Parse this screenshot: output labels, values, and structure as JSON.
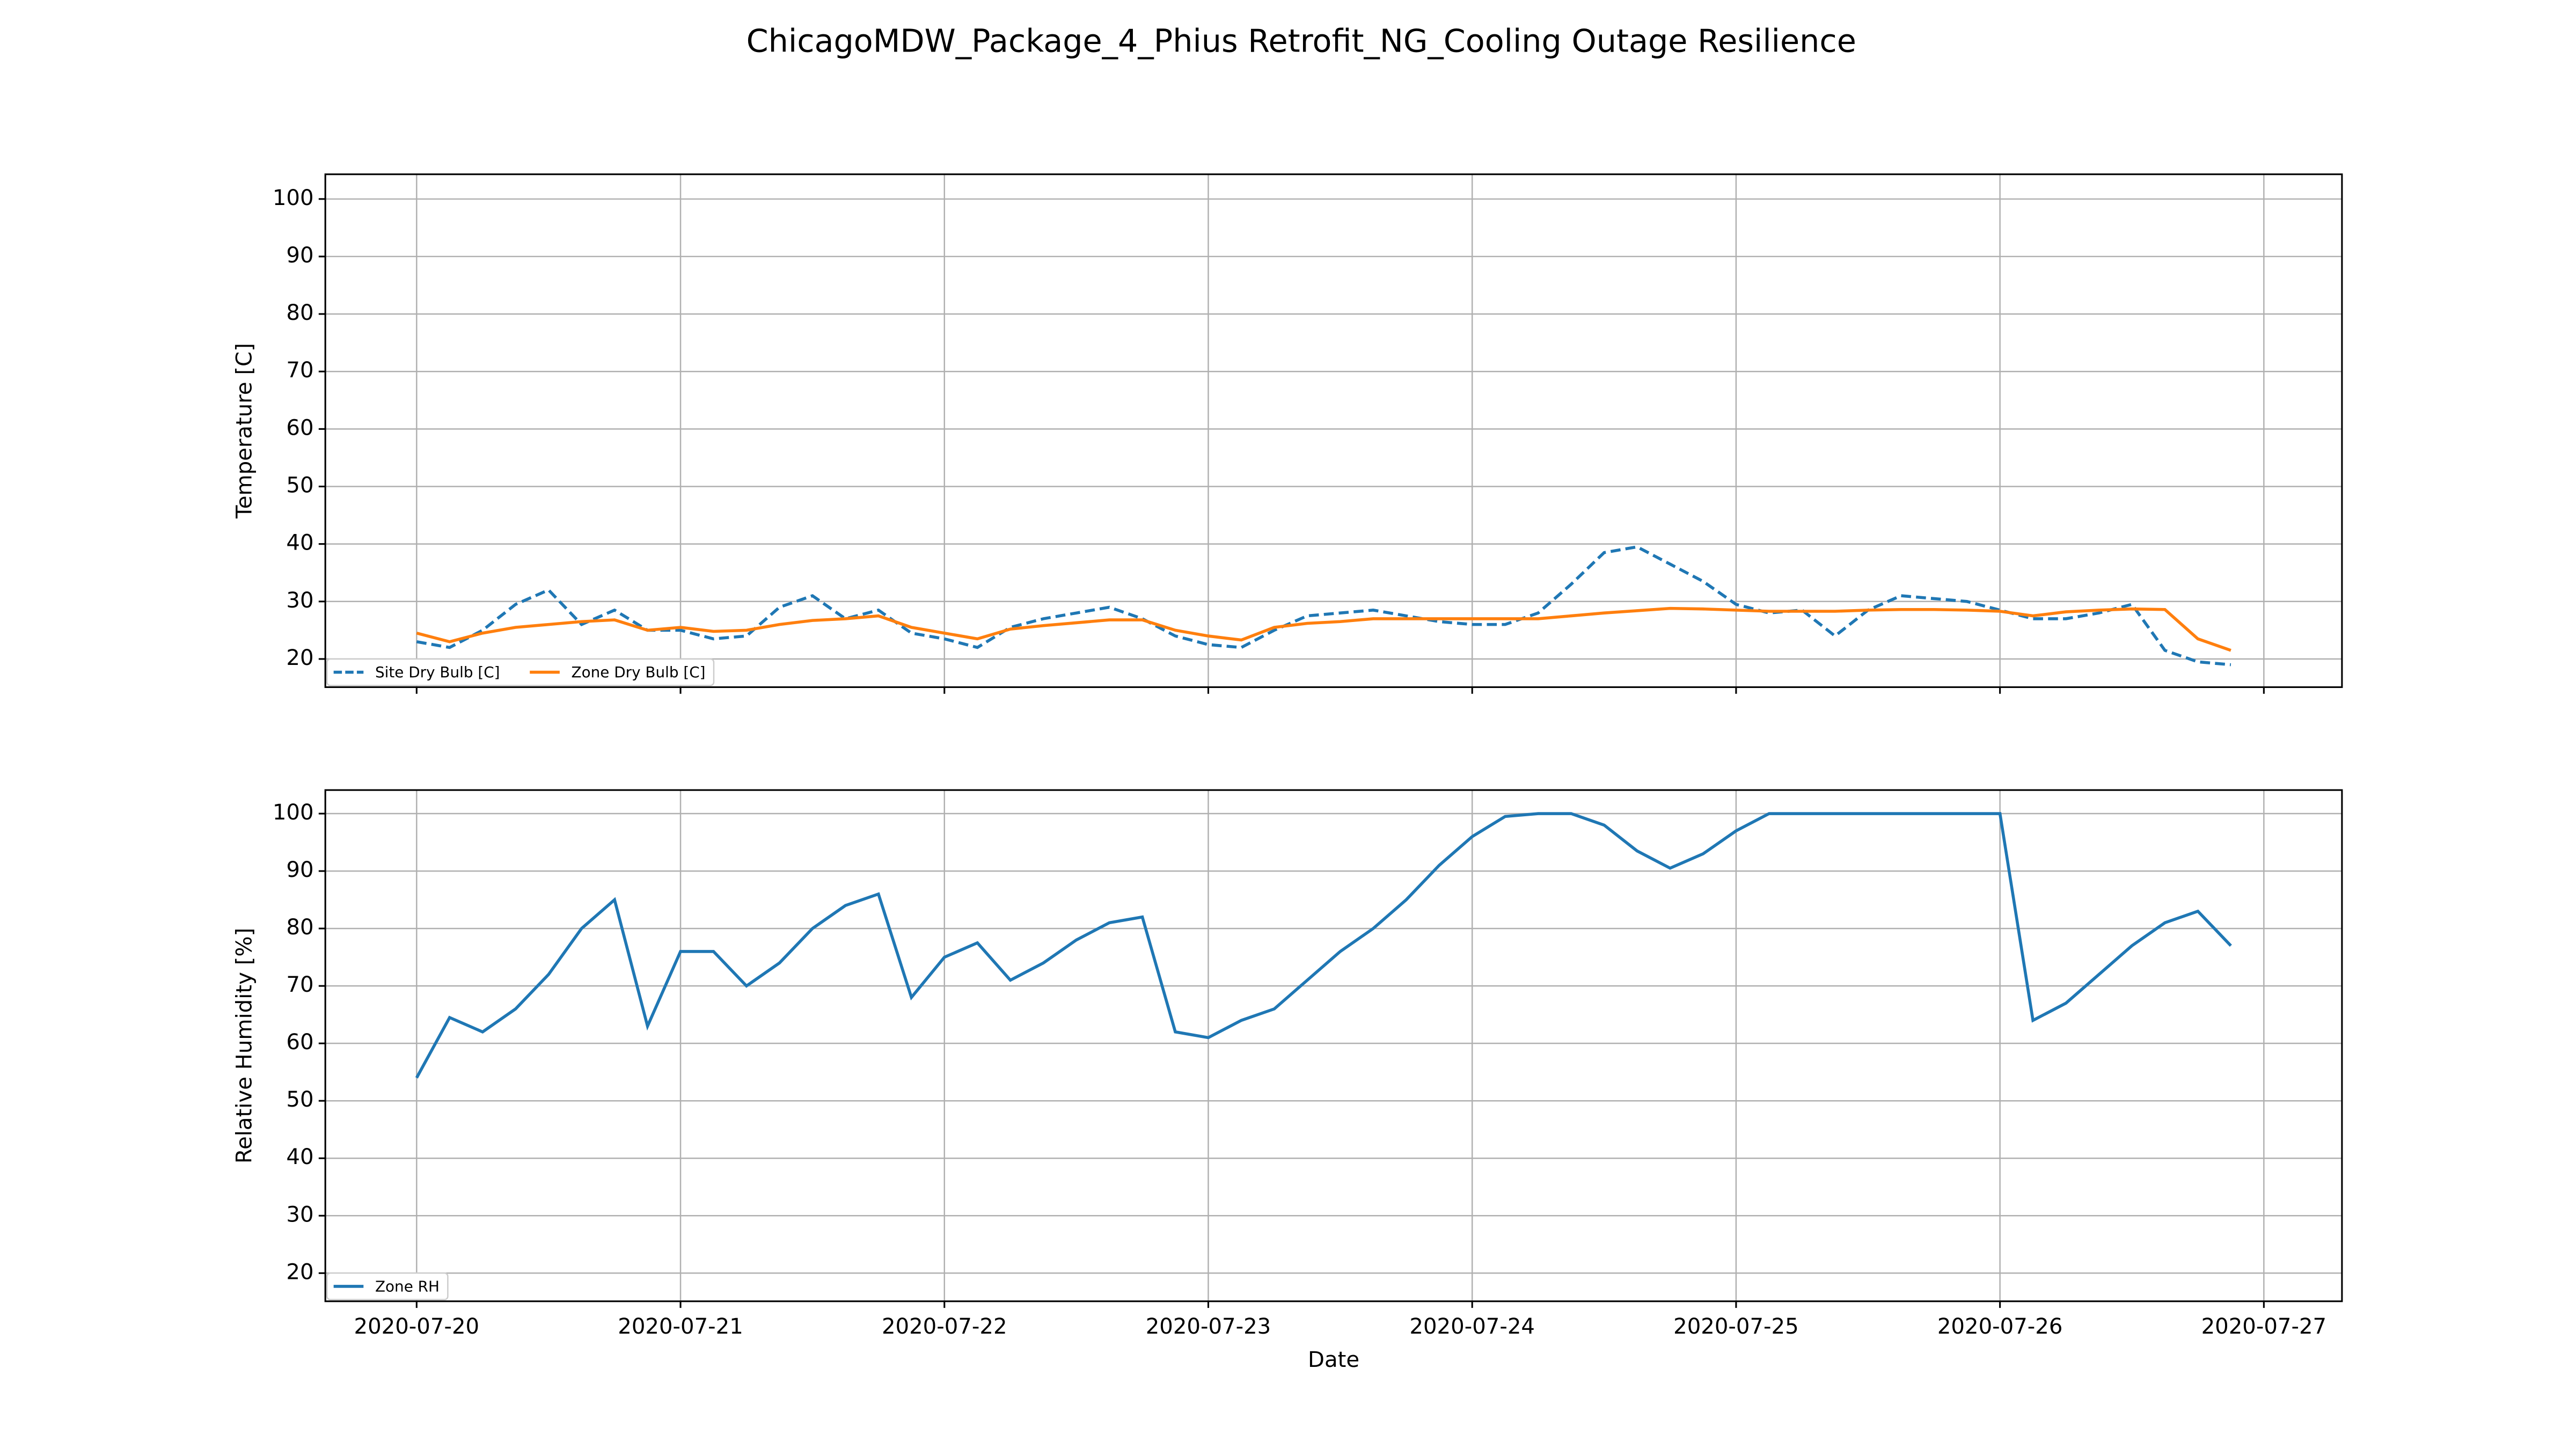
{
  "title": "ChicagoMDW_Package_4_Phius Retrofit_NG_Cooling Outage Resilience",
  "chart_data": [
    {
      "type": "line",
      "ylabel": "Temperature [C]",
      "x": [
        0,
        0.125,
        0.25,
        0.375,
        0.5,
        0.625,
        0.75,
        0.875,
        1,
        1.125,
        1.25,
        1.375,
        1.5,
        1.625,
        1.75,
        1.875,
        2,
        2.125,
        2.25,
        2.375,
        2.5,
        2.625,
        2.75,
        2.875,
        3,
        3.125,
        3.25,
        3.375,
        3.5,
        3.625,
        3.75,
        3.875,
        4,
        4.125,
        4.25,
        4.375,
        4.5,
        4.625,
        4.75,
        4.875,
        5,
        5.125,
        5.25,
        5.375,
        5.5,
        5.625,
        5.75,
        5.875,
        6,
        6.125,
        6.25,
        6.375,
        6.5,
        6.625,
        6.75,
        6.875
      ],
      "xlim": [
        -0.346,
        7.296
      ],
      "xticks": [
        0,
        1,
        2,
        3,
        4,
        5,
        6,
        7
      ],
      "ylim": [
        15.1,
        104.3
      ],
      "yticks": [
        20,
        30,
        40,
        50,
        60,
        70,
        80,
        90,
        100
      ],
      "grid": true,
      "legend": "lower left",
      "series": [
        {
          "name": "Site Dry Bulb [C]",
          "color": "#1f77b4",
          "linestyle": "dashed",
          "values": [
            23,
            22,
            25,
            29.5,
            32,
            26,
            28.5,
            25,
            25,
            23.5,
            24,
            29,
            31,
            27,
            28.5,
            24.5,
            23.5,
            22,
            25.5,
            27,
            28,
            29,
            27,
            24,
            22.5,
            22,
            25,
            27.5,
            28,
            28.5,
            27.5,
            26.5,
            26,
            26,
            28,
            33,
            38.5,
            39.5,
            36.5,
            33.5,
            29.5,
            28,
            28.5,
            24,
            28.5,
            31,
            30.5,
            30,
            28.5,
            27,
            27,
            28,
            29.5,
            21.5,
            19.5,
            19
          ]
        },
        {
          "name": "Zone Dry Bulb [C]",
          "color": "#ff7f0e",
          "linestyle": "solid",
          "values": [
            24.5,
            23,
            24.5,
            25.5,
            26,
            26.5,
            26.8,
            25,
            25.5,
            24.8,
            25,
            26,
            26.7,
            27,
            27.5,
            25.5,
            24.5,
            23.5,
            25.2,
            25.8,
            26.3,
            26.8,
            26.8,
            25,
            24,
            23.3,
            25.5,
            26.2,
            26.5,
            27,
            27,
            27,
            27,
            27,
            27,
            27.5,
            28,
            28.4,
            28.8,
            28.7,
            28.5,
            28.3,
            28.3,
            28.3,
            28.5,
            28.6,
            28.6,
            28.5,
            28.3,
            27.5,
            28.2,
            28.5,
            28.7,
            28.6,
            23.5,
            21.5
          ]
        }
      ]
    },
    {
      "type": "line",
      "ylabel": "Relative Humidity [%]",
      "xlabel": "Date",
      "x": [
        0,
        0.125,
        0.25,
        0.375,
        0.5,
        0.625,
        0.75,
        0.875,
        1,
        1.125,
        1.25,
        1.375,
        1.5,
        1.625,
        1.75,
        1.875,
        2,
        2.125,
        2.25,
        2.375,
        2.5,
        2.625,
        2.75,
        2.875,
        3,
        3.125,
        3.25,
        3.375,
        3.5,
        3.625,
        3.75,
        3.875,
        4,
        4.125,
        4.25,
        4.375,
        4.5,
        4.625,
        4.75,
        4.875,
        5,
        5.125,
        5.25,
        5.375,
        5.5,
        5.625,
        5.75,
        5.875,
        6,
        6.125,
        6.25,
        6.375,
        6.5,
        6.625,
        6.75,
        6.875
      ],
      "xlim": [
        -0.346,
        7.296
      ],
      "xticks": [
        {
          "value": 0,
          "label": "2020-07-20"
        },
        {
          "value": 1,
          "label": "2020-07-21"
        },
        {
          "value": 2,
          "label": "2020-07-22"
        },
        {
          "value": 3,
          "label": "2020-07-23"
        },
        {
          "value": 4,
          "label": "2020-07-24"
        },
        {
          "value": 5,
          "label": "2020-07-25"
        },
        {
          "value": 6,
          "label": "2020-07-26"
        },
        {
          "value": 7,
          "label": "2020-07-27"
        }
      ],
      "ylim": [
        15.1,
        104.1
      ],
      "yticks": [
        20,
        30,
        40,
        50,
        60,
        70,
        80,
        90,
        100
      ],
      "grid": true,
      "legend": "lower left",
      "series": [
        {
          "name": "Zone RH",
          "color": "#1f77b4",
          "linestyle": "solid",
          "values": [
            54,
            64.5,
            62,
            66,
            72,
            80,
            85,
            63,
            76,
            76,
            70,
            74,
            80,
            84,
            86,
            68,
            75,
            77.5,
            71,
            74,
            78,
            81,
            82,
            62,
            61,
            64,
            66,
            71,
            76,
            80,
            85,
            91,
            96,
            99.5,
            100,
            100,
            98,
            93.5,
            90.5,
            93,
            97,
            100,
            100,
            100,
            100,
            100,
            100,
            100,
            100,
            64,
            67,
            72,
            77,
            81,
            83,
            77
          ]
        }
      ]
    }
  ]
}
